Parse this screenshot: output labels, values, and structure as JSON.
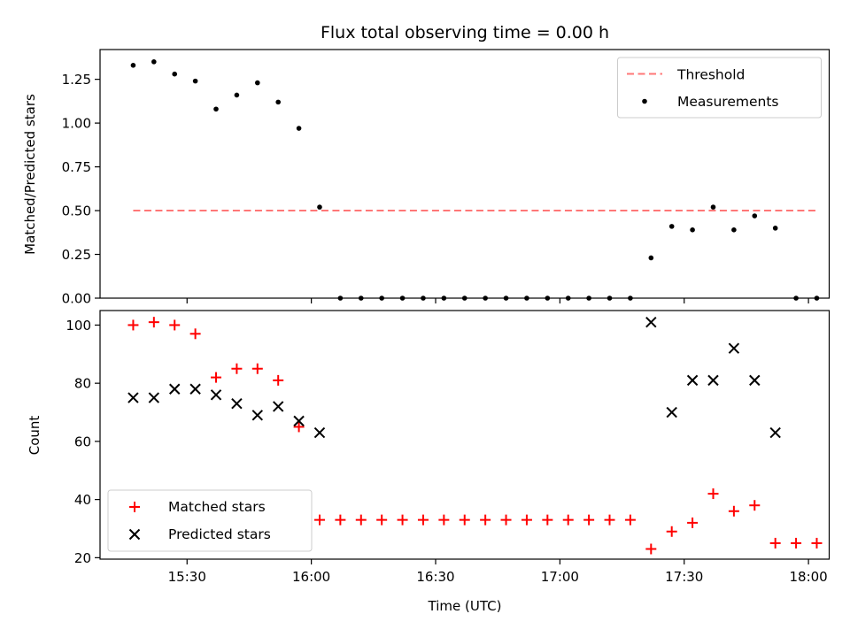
{
  "chart_data": [
    {
      "type": "scatter",
      "title": "Flux total observing time = 0.00 h",
      "xlabel": "",
      "ylabel": "Matched/Predicted stars",
      "ylim": [
        0,
        1.42
      ],
      "yticks": [
        0,
        0.25,
        0.5,
        0.75,
        1.0,
        1.25
      ],
      "yticklabels": [
        "0.00",
        "0.25",
        "0.50",
        "0.75",
        "1.00",
        "1.25"
      ],
      "legend_position": "upper right",
      "threshold": {
        "name": "Threshold",
        "value": 0.5,
        "x_start": "15:17",
        "x_end": "18:02",
        "color": "#ff7777",
        "style": "dashed"
      },
      "series": [
        {
          "name": "Measurements",
          "marker": "dot",
          "color": "#000000",
          "points": [
            [
              "15:17",
              1.33
            ],
            [
              "15:22",
              1.35
            ],
            [
              "15:27",
              1.28
            ],
            [
              "15:32",
              1.24
            ],
            [
              "15:37",
              1.08
            ],
            [
              "15:42",
              1.16
            ],
            [
              "15:47",
              1.23
            ],
            [
              "15:52",
              1.12
            ],
            [
              "15:57",
              0.97
            ],
            [
              "16:02",
              0.52
            ],
            [
              "16:07",
              0.0
            ],
            [
              "16:12",
              0.0
            ],
            [
              "16:17",
              0.0
            ],
            [
              "16:22",
              0.0
            ],
            [
              "16:27",
              0.0
            ],
            [
              "16:32",
              0.0
            ],
            [
              "16:37",
              0.0
            ],
            [
              "16:42",
              0.0
            ],
            [
              "16:47",
              0.0
            ],
            [
              "16:52",
              0.0
            ],
            [
              "16:57",
              0.0
            ],
            [
              "17:02",
              0.0
            ],
            [
              "17:07",
              0.0
            ],
            [
              "17:12",
              0.0
            ],
            [
              "17:17",
              0.0
            ],
            [
              "17:22",
              0.23
            ],
            [
              "17:27",
              0.41
            ],
            [
              "17:32",
              0.39
            ],
            [
              "17:37",
              0.52
            ],
            [
              "17:42",
              0.39
            ],
            [
              "17:47",
              0.47
            ],
            [
              "17:52",
              0.4
            ],
            [
              "17:57",
              0.0
            ],
            [
              "18:02",
              0.0
            ]
          ]
        }
      ]
    },
    {
      "type": "scatter",
      "title": "",
      "xlabel": "Time (UTC)",
      "ylabel": "Count",
      "ylim": [
        19.5,
        105
      ],
      "yticks": [
        20,
        40,
        60,
        80,
        100
      ],
      "yticklabels": [
        "20",
        "40",
        "60",
        "80",
        "100"
      ],
      "xlim": [
        "15:09",
        "18:05"
      ],
      "xticks": [
        "15:30",
        "16:00",
        "16:30",
        "17:00",
        "17:30",
        "18:00"
      ],
      "legend_position": "lower left",
      "series": [
        {
          "name": "Matched stars",
          "marker": "plus",
          "color": "#ff0000",
          "points": [
            [
              "15:17",
              100
            ],
            [
              "15:22",
              101
            ],
            [
              "15:27",
              100
            ],
            [
              "15:32",
              97
            ],
            [
              "15:37",
              82
            ],
            [
              "15:42",
              85
            ],
            [
              "15:47",
              85
            ],
            [
              "15:52",
              81
            ],
            [
              "15:57",
              65
            ],
            [
              "16:02",
              33
            ],
            [
              "16:07",
              33
            ],
            [
              "16:12",
              33
            ],
            [
              "16:17",
              33
            ],
            [
              "16:22",
              33
            ],
            [
              "16:27",
              33
            ],
            [
              "16:32",
              33
            ],
            [
              "16:37",
              33
            ],
            [
              "16:42",
              33
            ],
            [
              "16:47",
              33
            ],
            [
              "16:52",
              33
            ],
            [
              "16:57",
              33
            ],
            [
              "17:02",
              33
            ],
            [
              "17:07",
              33
            ],
            [
              "17:12",
              33
            ],
            [
              "17:17",
              33
            ],
            [
              "17:22",
              23
            ],
            [
              "17:27",
              29
            ],
            [
              "17:32",
              32
            ],
            [
              "17:37",
              42
            ],
            [
              "17:42",
              36
            ],
            [
              "17:47",
              38
            ],
            [
              "17:52",
              25
            ],
            [
              "17:57",
              25
            ],
            [
              "18:02",
              25
            ]
          ]
        },
        {
          "name": "Predicted stars",
          "marker": "x",
          "color": "#000000",
          "points": [
            [
              "15:17",
              75
            ],
            [
              "15:22",
              75
            ],
            [
              "15:27",
              78
            ],
            [
              "15:32",
              78
            ],
            [
              "15:37",
              76
            ],
            [
              "15:42",
              73
            ],
            [
              "15:47",
              69
            ],
            [
              "15:52",
              72
            ],
            [
              "15:57",
              67
            ],
            [
              "16:02",
              63
            ],
            [
              "17:22",
              101
            ],
            [
              "17:27",
              70
            ],
            [
              "17:32",
              81
            ],
            [
              "17:37",
              81
            ],
            [
              "17:42",
              92
            ],
            [
              "17:47",
              81
            ],
            [
              "17:52",
              63
            ]
          ]
        }
      ]
    }
  ]
}
